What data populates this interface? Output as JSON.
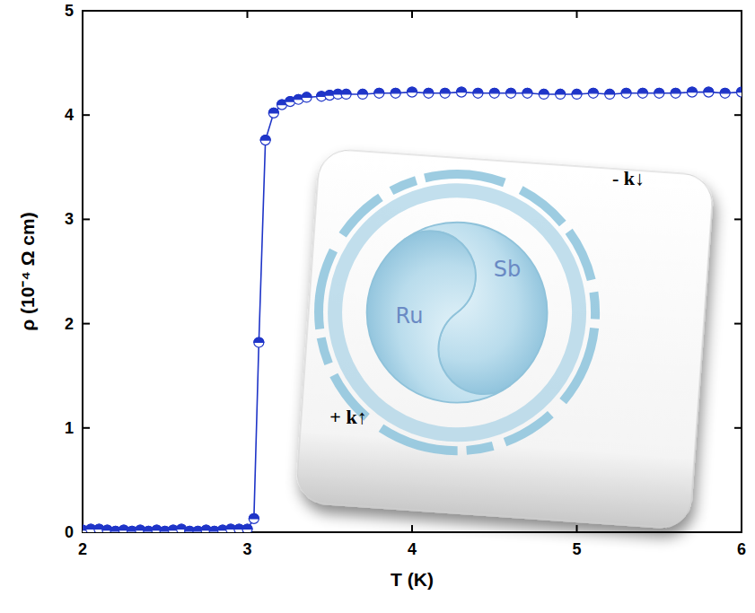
{
  "chart_data": {
    "type": "line",
    "xlabel": "T (K)",
    "ylabel": "ρ (10⁻⁴ Ω cm)",
    "xlim": [
      2,
      6
    ],
    "ylim": [
      0,
      5
    ],
    "xticks": [
      2,
      3,
      4,
      5,
      6
    ],
    "yticks": [
      0,
      1,
      2,
      3,
      4,
      5
    ],
    "color": "#1f35c8",
    "marker": "half-filled",
    "line_style": "solid",
    "grid": false,
    "annotations": [
      "Sb",
      "Ru",
      "+ k↑",
      "- k↓"
    ],
    "x": [
      2.0,
      2.05,
      2.1,
      2.15,
      2.2,
      2.25,
      2.3,
      2.35,
      2.4,
      2.45,
      2.5,
      2.55,
      2.6,
      2.65,
      2.7,
      2.75,
      2.8,
      2.85,
      2.9,
      2.95,
      3.0,
      3.04,
      3.07,
      3.11,
      3.16,
      3.21,
      3.26,
      3.31,
      3.36,
      3.45,
      3.5,
      3.55,
      3.6,
      3.7,
      3.8,
      3.9,
      4.0,
      4.1,
      4.2,
      4.3,
      4.4,
      4.5,
      4.6,
      4.7,
      4.8,
      4.9,
      5.0,
      5.1,
      5.2,
      5.3,
      5.4,
      5.5,
      5.6,
      5.7,
      5.8,
      5.9,
      6.0
    ],
    "values": [
      0.02,
      0.03,
      0.03,
      0.02,
      0.01,
      0.02,
      0.01,
      0.02,
      0.01,
      0.02,
      0.01,
      0.02,
      0.03,
      0.01,
      0.01,
      0.02,
      0.01,
      0.02,
      0.03,
      0.03,
      0.03,
      0.13,
      1.82,
      3.76,
      4.02,
      4.1,
      4.13,
      4.15,
      4.17,
      4.18,
      4.19,
      4.2,
      4.2,
      4.2,
      4.21,
      4.21,
      4.22,
      4.21,
      4.21,
      4.22,
      4.21,
      4.21,
      4.21,
      4.21,
      4.2,
      4.2,
      4.2,
      4.21,
      4.2,
      4.21,
      4.21,
      4.21,
      4.21,
      4.22,
      4.22,
      4.21,
      4.22
    ]
  }
}
